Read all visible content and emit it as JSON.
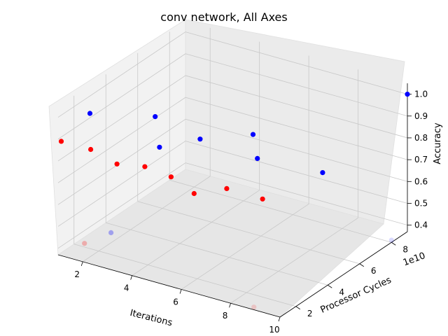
{
  "chart_data": {
    "type": "scatter",
    "title": "conv network, All Axes",
    "xlabel": "Iterations",
    "ylabel": "Processor Cycles",
    "ylabel_offset": "1e10",
    "zlabel": "Accuracy",
    "x_ticks": [
      "2",
      "4",
      "6",
      "8",
      "10"
    ],
    "y_ticks": [
      "2",
      "4",
      "6",
      "8"
    ],
    "z_ticks": [
      "0.4",
      "0.5",
      "0.6",
      "0.7",
      "0.8",
      "0.9",
      "1.0"
    ],
    "colors": {
      "red_series": "#ff0000",
      "blue_series": "#0000ff"
    },
    "grid": true,
    "projection": "3d",
    "points": [
      {
        "series": "red",
        "x": 1,
        "y": 1.2,
        "z": 0.88,
        "alpha": 1.0
      },
      {
        "series": "red",
        "x": 2,
        "y": 1.5,
        "z": 0.86,
        "alpha": 1.0
      },
      {
        "series": "red",
        "x": 3,
        "y": 1.6,
        "z": 0.82,
        "alpha": 1.0
      },
      {
        "series": "red",
        "x": 4,
        "y": 1.8,
        "z": 0.83,
        "alpha": 1.0
      },
      {
        "series": "red",
        "x": 5,
        "y": 1.9,
        "z": 0.81,
        "alpha": 1.0
      },
      {
        "series": "red",
        "x": 6,
        "y": 1.8,
        "z": 0.77,
        "alpha": 1.0
      },
      {
        "series": "red",
        "x": 7,
        "y": 2.3,
        "z": 0.8,
        "alpha": 1.0
      },
      {
        "series": "red",
        "x": 8,
        "y": 3.0,
        "z": 0.75,
        "alpha": 1.0
      },
      {
        "series": "red",
        "x": 2.2,
        "y": 0.8,
        "z": 0.47,
        "alpha": 0.25
      },
      {
        "series": "red",
        "x": 9.2,
        "y": 0.6,
        "z": 0.41,
        "alpha": 0.15
      },
      {
        "series": "blue",
        "x": 1,
        "y": 3.0,
        "z": 0.92,
        "alpha": 1.0
      },
      {
        "series": "blue",
        "x": 3,
        "y": 4.0,
        "z": 0.92,
        "alpha": 1.0
      },
      {
        "series": "blue",
        "x": 3.5,
        "y": 3.5,
        "z": 0.82,
        "alpha": 1.0
      },
      {
        "series": "blue",
        "x": 4.5,
        "y": 4.5,
        "z": 0.84,
        "alpha": 1.0
      },
      {
        "series": "blue",
        "x": 6,
        "y": 5.5,
        "z": 0.86,
        "alpha": 1.0
      },
      {
        "series": "blue",
        "x": 6.5,
        "y": 5.0,
        "z": 0.79,
        "alpha": 1.0
      },
      {
        "series": "blue",
        "x": 8.5,
        "y": 6.0,
        "z": 0.74,
        "alpha": 1.0
      },
      {
        "series": "blue",
        "x": 10,
        "y": 9.0,
        "z": 1.0,
        "alpha": 1.0
      },
      {
        "series": "blue",
        "x": 2.5,
        "y": 2.0,
        "z": 0.47,
        "alpha": 0.3
      },
      {
        "series": "blue",
        "x": 10,
        "y": 8.0,
        "z": 0.38,
        "alpha": 0.15
      }
    ]
  }
}
